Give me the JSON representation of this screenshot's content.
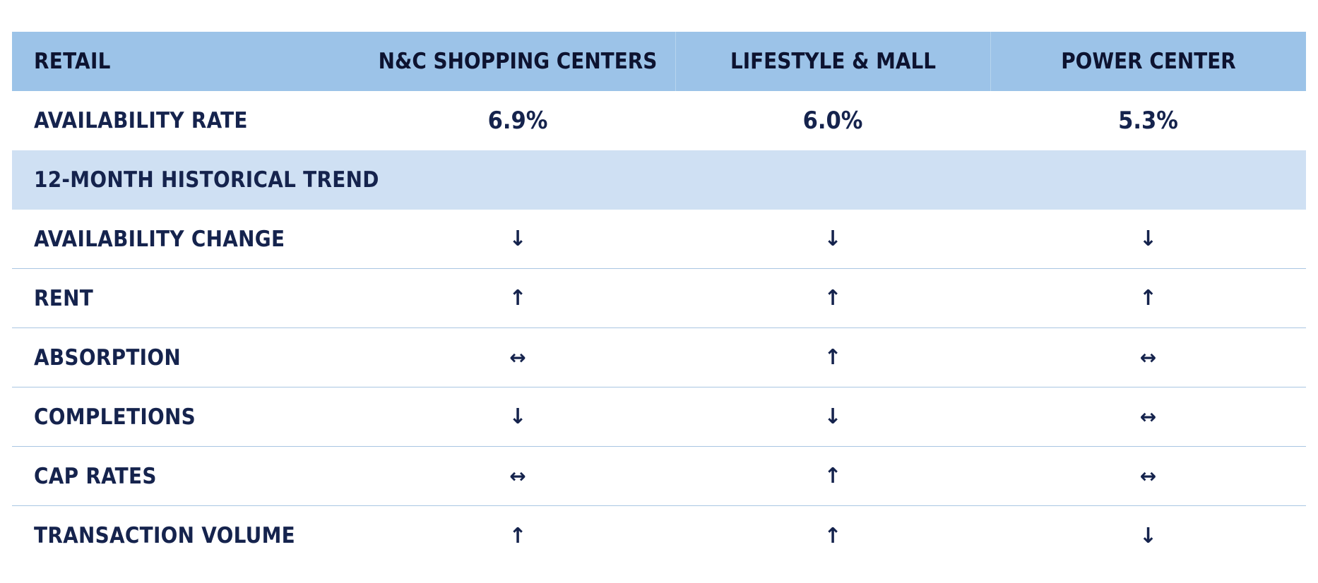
{
  "header": {
    "segment_label": "RETAIL",
    "columns": [
      "N&C SHOPPING CENTERS",
      "LIFESTYLE & MALL",
      "POWER CENTER"
    ]
  },
  "availability_rate": {
    "label": "AVAILABILITY RATE",
    "values": [
      "6.9%",
      "6.0%",
      "5.3%"
    ]
  },
  "section": {
    "label": "12-MONTH HISTORICAL TREND"
  },
  "trends": [
    {
      "label": "AVAILABILITY CHANGE",
      "icons": [
        "arrow-down-icon",
        "arrow-down-icon",
        "arrow-down-icon"
      ],
      "glyphs": [
        "↓",
        "↓",
        "↓"
      ]
    },
    {
      "label": "RENT",
      "icons": [
        "arrow-up-icon",
        "arrow-up-icon",
        "arrow-up-icon"
      ],
      "glyphs": [
        "↑",
        "↑",
        "↑"
      ]
    },
    {
      "label": "ABSORPTION",
      "icons": [
        "arrow-left-right-icon",
        "arrow-up-icon",
        "arrow-left-right-icon"
      ],
      "glyphs": [
        "↔",
        "↑",
        "↔"
      ]
    },
    {
      "label": "COMPLETIONS",
      "icons": [
        "arrow-down-icon",
        "arrow-down-icon",
        "arrow-left-right-icon"
      ],
      "glyphs": [
        "↓",
        "↓",
        "↔"
      ]
    },
    {
      "label": "CAP RATES",
      "icons": [
        "arrow-left-right-icon",
        "arrow-up-icon",
        "arrow-left-right-icon"
      ],
      "glyphs": [
        "↔",
        "↑",
        "↔"
      ]
    },
    {
      "label": "TRANSACTION VOLUME",
      "icons": [
        "arrow-up-icon",
        "arrow-up-icon",
        "arrow-down-icon"
      ],
      "glyphs": [
        "↑",
        "↑",
        "↓"
      ]
    }
  ],
  "colors": {
    "header_bg": "#9cc3e8",
    "section_bg": "#cfe0f3",
    "text": "#15234d",
    "row_divider": "#a9c6e2"
  }
}
